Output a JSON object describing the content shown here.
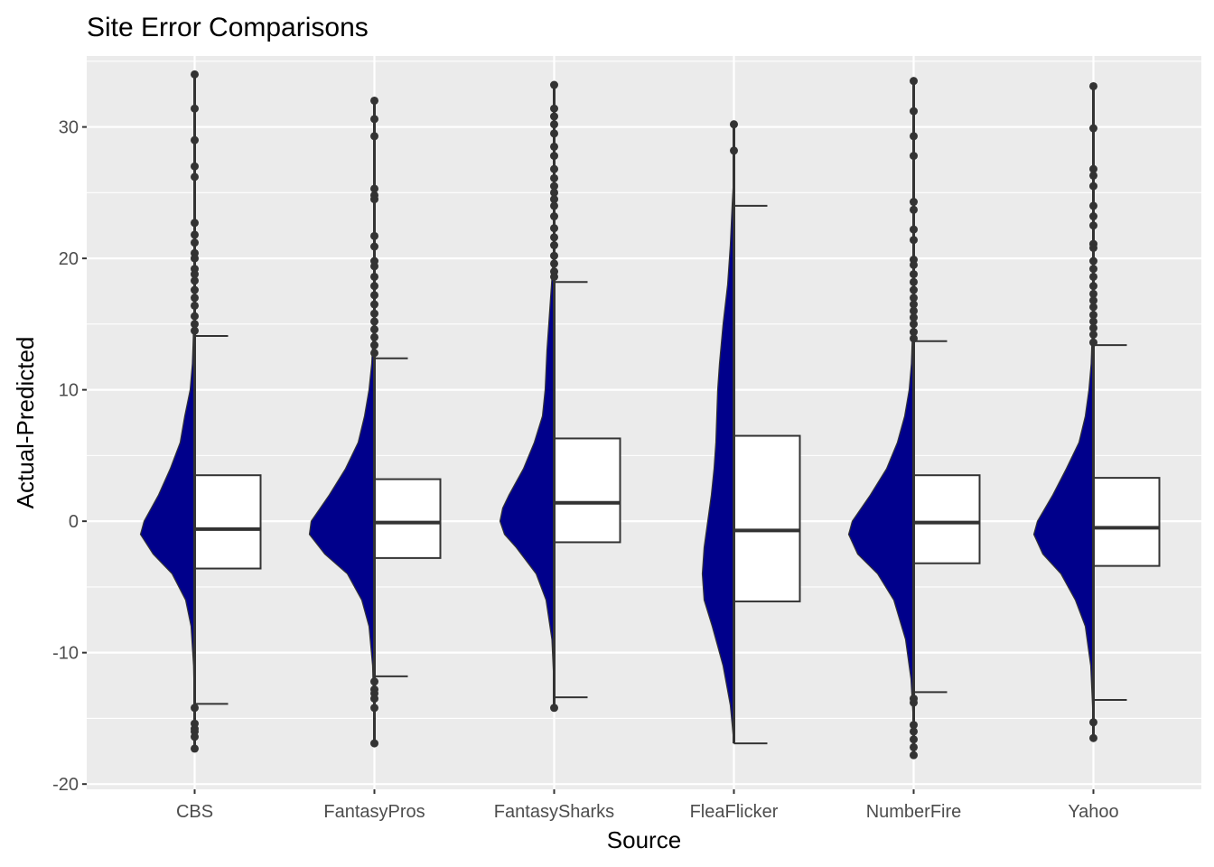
{
  "chart_data": {
    "type": "raincloud",
    "title": "Site Error Comparisons",
    "xlabel": "Source",
    "ylabel": "Actual-Predicted",
    "ylim": [
      -20.4,
      35.4
    ],
    "y_ticks": [
      -20,
      -10,
      0,
      10,
      20,
      30
    ],
    "grid": true,
    "colors": {
      "panel": "#ebebeb",
      "grid": "#ffffff",
      "fill": "#00008b",
      "outline": "#333333",
      "box": "#ffffff",
      "point": "#333333"
    },
    "categories": [
      "CBS",
      "FantasyPros",
      "FantasySharks",
      "FleaFlicker",
      "NumberFire",
      "Yahoo"
    ],
    "boxes": [
      {
        "q1": -3.6,
        "median": -0.6,
        "q3": 3.5,
        "whisker_low": -13.9,
        "whisker_high": 14.1
      },
      {
        "q1": -2.8,
        "median": -0.1,
        "q3": 3.2,
        "whisker_low": -11.8,
        "whisker_high": 12.4
      },
      {
        "q1": -1.6,
        "median": 1.4,
        "q3": 6.3,
        "whisker_low": -13.4,
        "whisker_high": 18.2
      },
      {
        "q1": -6.1,
        "median": -0.7,
        "q3": 6.5,
        "whisker_low": -16.9,
        "whisker_high": 24.0
      },
      {
        "q1": -3.2,
        "median": -0.1,
        "q3": 3.5,
        "whisker_low": -13.0,
        "whisker_high": 13.7
      },
      {
        "q1": -3.4,
        "median": -0.5,
        "q3": 3.3,
        "whisker_low": -13.6,
        "whisker_high": 13.4
      }
    ],
    "densities": [
      {
        "y": [
          -17.3,
          -14,
          -11,
          -8,
          -6,
          -4,
          -2.5,
          -1,
          0,
          2,
          4,
          6,
          8,
          10,
          12,
          14,
          17,
          20,
          25,
          34
        ],
        "w": [
          0,
          0.3,
          1.2,
          4,
          10,
          25,
          46,
          60,
          56,
          40,
          27,
          16,
          11,
          5,
          2.5,
          1.5,
          0.6,
          0.3,
          0.1,
          0
        ]
      },
      {
        "y": [
          -16.9,
          -14,
          -11,
          -8,
          -6,
          -4,
          -2.5,
          -1,
          0,
          2,
          4,
          6,
          8,
          10,
          12,
          14,
          17,
          20,
          25,
          32
        ],
        "w": [
          0,
          0.8,
          2,
          6,
          14,
          30,
          55,
          72,
          70,
          50,
          32,
          18,
          11,
          6,
          3,
          1.5,
          0.6,
          0.3,
          0.1,
          0
        ]
      },
      {
        "y": [
          -14.2,
          -12,
          -9,
          -6,
          -4,
          -2,
          -1,
          0,
          1,
          2,
          4,
          6,
          8,
          10,
          13,
          15,
          18,
          20,
          25,
          33.2
        ],
        "w": [
          0,
          0.5,
          2.5,
          9,
          20,
          42,
          55,
          60,
          57,
          50,
          34,
          22,
          13,
          10,
          8,
          6,
          3,
          1,
          0.3,
          0
        ]
      },
      {
        "y": [
          -16.9,
          -14,
          -11,
          -8,
          -6,
          -4,
          -2,
          0,
          2,
          4,
          6,
          8,
          10,
          12,
          15,
          18,
          21,
          24,
          26.5,
          30.2
        ],
        "w": [
          0,
          4,
          12,
          24,
          33,
          35,
          33,
          29,
          25,
          22,
          20,
          19,
          18,
          16,
          12,
          7,
          4,
          2,
          0,
          0
        ]
      },
      {
        "y": [
          -17.8,
          -15,
          -12,
          -9,
          -6,
          -4,
          -2.5,
          -1,
          0,
          2,
          4,
          6,
          8,
          10,
          12,
          14,
          17,
          20,
          25,
          33.5
        ],
        "w": [
          0,
          0.5,
          3,
          9,
          22,
          40,
          62,
          72,
          68,
          48,
          30,
          18,
          10,
          5,
          2.5,
          1.5,
          0.6,
          0.3,
          0.1,
          0
        ]
      },
      {
        "y": [
          -16.5,
          -14,
          -11,
          -8,
          -6,
          -4,
          -2.5,
          -1,
          0,
          2,
          4,
          6,
          8,
          10,
          12,
          14,
          17,
          20,
          25,
          33.1
        ],
        "w": [
          0,
          1,
          3,
          9,
          20,
          36,
          56,
          66,
          62,
          45,
          30,
          16,
          9,
          5,
          2.5,
          1.5,
          0.6,
          0.3,
          0.1,
          0
        ]
      }
    ],
    "points": [
      [
        34.0,
        31.4,
        29.0,
        27.0,
        26.2,
        22.7,
        21.8,
        21.2,
        20.4,
        20.0,
        19.2,
        18.8,
        18.3,
        17.6,
        17.0,
        16.4,
        15.6,
        15.0,
        14.5,
        -14.2,
        -15.4,
        -15.8,
        -16.0,
        -16.4,
        -17.3
      ],
      [
        32.0,
        30.6,
        29.3,
        25.3,
        24.8,
        24.5,
        21.7,
        20.9,
        19.8,
        19.4,
        18.6,
        17.9,
        17.2,
        16.5,
        15.8,
        15.2,
        14.6,
        14.0,
        13.4,
        12.8,
        -12.2,
        -12.8,
        -13.1,
        -13.5,
        -14.2,
        -16.9
      ],
      [
        33.2,
        31.4,
        30.8,
        30.2,
        29.5,
        28.5,
        27.8,
        26.8,
        26.1,
        25.5,
        25.0,
        24.5,
        24.0,
        23.2,
        22.3,
        21.6,
        21.0,
        20.2,
        19.6,
        19.0,
        18.6,
        -14.2
      ],
      [
        30.2,
        28.2
      ],
      [
        33.5,
        31.2,
        29.3,
        27.8,
        24.3,
        23.7,
        22.2,
        21.4,
        19.9,
        19.5,
        18.8,
        18.2,
        17.6,
        17.0,
        16.5,
        16.0,
        15.5,
        15.0,
        14.4,
        13.9,
        -13.5,
        -13.8,
        -15.5,
        -16.0,
        -16.6,
        -17.2,
        -17.8
      ],
      [
        33.1,
        29.9,
        26.8,
        26.3,
        25.5,
        24.0,
        23.2,
        22.5,
        21.1,
        20.8,
        19.8,
        19.2,
        18.6,
        17.9,
        17.3,
        16.8,
        16.3,
        15.7,
        15.2,
        14.7,
        14.2,
        13.6,
        -15.3,
        -16.5
      ]
    ]
  }
}
